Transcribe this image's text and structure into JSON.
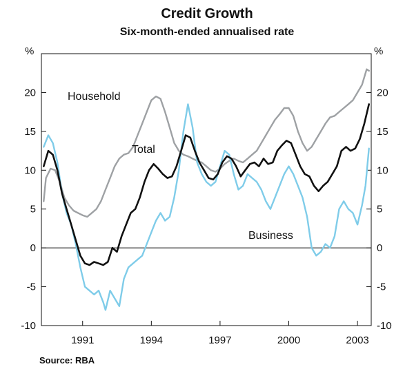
{
  "chart_data": {
    "type": "line",
    "title": "Credit Growth",
    "subtitle": "Six-month-ended annualised rate",
    "y_unit_left": "%",
    "y_unit_right": "%",
    "ylim": [
      -10,
      25
    ],
    "yticks": [
      -10,
      -5,
      0,
      5,
      10,
      15,
      20
    ],
    "xlim": [
      1989.2,
      2003.6
    ],
    "xticks": [
      1991,
      1994,
      1997,
      2000,
      2003
    ],
    "xtick_labels": [
      "1991",
      "1994",
      "1997",
      "2000",
      "2003"
    ],
    "source": "Source: RBA",
    "series": [
      {
        "name": "Household",
        "label": "Household",
        "color": "#9ea1a4",
        "points": [
          [
            1989.3,
            6
          ],
          [
            1989.4,
            9
          ],
          [
            1989.6,
            10.2
          ],
          [
            1989.8,
            10
          ],
          [
            1990.0,
            8.5
          ],
          [
            1990.2,
            6.5
          ],
          [
            1990.4,
            5.5
          ],
          [
            1990.6,
            4.8
          ],
          [
            1990.8,
            4.5
          ],
          [
            1991.0,
            4.2
          ],
          [
            1991.2,
            4
          ],
          [
            1991.4,
            4.5
          ],
          [
            1991.6,
            5
          ],
          [
            1991.8,
            6
          ],
          [
            1992.0,
            7.5
          ],
          [
            1992.2,
            9
          ],
          [
            1992.4,
            10.5
          ],
          [
            1992.6,
            11.5
          ],
          [
            1992.8,
            12
          ],
          [
            1993.0,
            12.2
          ],
          [
            1993.2,
            13
          ],
          [
            1993.4,
            14.5
          ],
          [
            1993.6,
            16
          ],
          [
            1993.8,
            17.5
          ],
          [
            1994.0,
            19
          ],
          [
            1994.2,
            19.5
          ],
          [
            1994.4,
            19.2
          ],
          [
            1994.6,
            17.5
          ],
          [
            1994.8,
            15.5
          ],
          [
            1995.0,
            13.5
          ],
          [
            1995.2,
            12.5
          ],
          [
            1995.4,
            12
          ],
          [
            1995.6,
            11.8
          ],
          [
            1995.8,
            11.5
          ],
          [
            1996.0,
            11.2
          ],
          [
            1996.2,
            11
          ],
          [
            1996.4,
            10.5
          ],
          [
            1996.6,
            10
          ],
          [
            1996.8,
            9.8
          ],
          [
            1997.0,
            10.2
          ],
          [
            1997.2,
            10.8
          ],
          [
            1997.4,
            11.2
          ],
          [
            1997.6,
            11.5
          ],
          [
            1997.8,
            11.2
          ],
          [
            1998.0,
            11
          ],
          [
            1998.2,
            11.5
          ],
          [
            1998.4,
            12
          ],
          [
            1998.6,
            12.5
          ],
          [
            1998.8,
            13.5
          ],
          [
            1999.0,
            14.5
          ],
          [
            1999.2,
            15.5
          ],
          [
            1999.4,
            16.5
          ],
          [
            1999.6,
            17.2
          ],
          [
            1999.8,
            18
          ],
          [
            2000.0,
            18
          ],
          [
            2000.2,
            17
          ],
          [
            2000.4,
            15
          ],
          [
            2000.6,
            13.5
          ],
          [
            2000.8,
            12.5
          ],
          [
            2001.0,
            13
          ],
          [
            2001.2,
            14
          ],
          [
            2001.4,
            15
          ],
          [
            2001.6,
            16
          ],
          [
            2001.8,
            16.8
          ],
          [
            2002.0,
            17
          ],
          [
            2002.2,
            17.5
          ],
          [
            2002.4,
            18
          ],
          [
            2002.6,
            18.5
          ],
          [
            2002.8,
            19
          ],
          [
            2003.0,
            20
          ],
          [
            2003.2,
            21
          ],
          [
            2003.4,
            23
          ],
          [
            2003.5,
            22.8
          ]
        ]
      },
      {
        "name": "Total",
        "label": "Total",
        "color": "#111111",
        "points": [
          [
            1989.3,
            10.5
          ],
          [
            1989.5,
            12.5
          ],
          [
            1989.7,
            12
          ],
          [
            1989.9,
            10
          ],
          [
            1990.1,
            7
          ],
          [
            1990.3,
            5
          ],
          [
            1990.5,
            3
          ],
          [
            1990.7,
            1
          ],
          [
            1990.9,
            -1
          ],
          [
            1991.1,
            -2
          ],
          [
            1991.3,
            -2.2
          ],
          [
            1991.5,
            -1.8
          ],
          [
            1991.7,
            -2
          ],
          [
            1991.9,
            -2.2
          ],
          [
            1992.1,
            -1.8
          ],
          [
            1992.3,
            0
          ],
          [
            1992.5,
            -0.5
          ],
          [
            1992.7,
            1.5
          ],
          [
            1992.9,
            3
          ],
          [
            1993.1,
            4.5
          ],
          [
            1993.3,
            5
          ],
          [
            1993.5,
            6.5
          ],
          [
            1993.7,
            8.5
          ],
          [
            1993.9,
            10
          ],
          [
            1994.1,
            10.8
          ],
          [
            1994.3,
            10.2
          ],
          [
            1994.5,
            9.5
          ],
          [
            1994.7,
            9
          ],
          [
            1994.9,
            9.2
          ],
          [
            1995.1,
            10.5
          ],
          [
            1995.3,
            12.5
          ],
          [
            1995.5,
            14.5
          ],
          [
            1995.7,
            14.2
          ],
          [
            1995.9,
            12.5
          ],
          [
            1996.1,
            11
          ],
          [
            1996.3,
            10
          ],
          [
            1996.5,
            9
          ],
          [
            1996.7,
            8.8
          ],
          [
            1996.9,
            9.5
          ],
          [
            1997.1,
            11
          ],
          [
            1997.3,
            11.8
          ],
          [
            1997.5,
            11.5
          ],
          [
            1997.7,
            10.5
          ],
          [
            1997.9,
            9.2
          ],
          [
            1998.1,
            10
          ],
          [
            1998.3,
            10.8
          ],
          [
            1998.5,
            11
          ],
          [
            1998.7,
            10.5
          ],
          [
            1998.9,
            11.5
          ],
          [
            1999.1,
            10.8
          ],
          [
            1999.3,
            11
          ],
          [
            1999.5,
            12.5
          ],
          [
            1999.7,
            13.2
          ],
          [
            1999.9,
            13.8
          ],
          [
            2000.1,
            13.5
          ],
          [
            2000.3,
            12
          ],
          [
            2000.5,
            10.5
          ],
          [
            2000.7,
            9.5
          ],
          [
            2000.9,
            9.2
          ],
          [
            2001.1,
            8
          ],
          [
            2001.3,
            7.3
          ],
          [
            2001.5,
            8
          ],
          [
            2001.7,
            8.5
          ],
          [
            2001.9,
            9.5
          ],
          [
            2002.1,
            10.5
          ],
          [
            2002.3,
            12.5
          ],
          [
            2002.5,
            13
          ],
          [
            2002.7,
            12.5
          ],
          [
            2002.9,
            12.8
          ],
          [
            2003.1,
            14
          ],
          [
            2003.3,
            16
          ],
          [
            2003.5,
            18.5
          ]
        ]
      },
      {
        "name": "Business",
        "label": "Business",
        "color": "#7fcce9",
        "points": [
          [
            1989.3,
            13
          ],
          [
            1989.5,
            14.5
          ],
          [
            1989.7,
            13.5
          ],
          [
            1989.9,
            11
          ],
          [
            1990.1,
            7
          ],
          [
            1990.3,
            4.5
          ],
          [
            1990.5,
            3
          ],
          [
            1990.7,
            0.5
          ],
          [
            1990.9,
            -2.5
          ],
          [
            1991.1,
            -5
          ],
          [
            1991.3,
            -5.5
          ],
          [
            1991.5,
            -6
          ],
          [
            1991.7,
            -5.5
          ],
          [
            1991.9,
            -7
          ],
          [
            1992.0,
            -8
          ],
          [
            1992.2,
            -5.5
          ],
          [
            1992.4,
            -6.5
          ],
          [
            1992.6,
            -7.5
          ],
          [
            1992.8,
            -4
          ],
          [
            1993.0,
            -2.5
          ],
          [
            1993.2,
            -2
          ],
          [
            1993.4,
            -1.5
          ],
          [
            1993.6,
            -1
          ],
          [
            1993.8,
            0.5
          ],
          [
            1994.0,
            2
          ],
          [
            1994.2,
            3.5
          ],
          [
            1994.4,
            4.5
          ],
          [
            1994.6,
            3.5
          ],
          [
            1994.8,
            4
          ],
          [
            1995.0,
            6.5
          ],
          [
            1995.2,
            10
          ],
          [
            1995.4,
            15
          ],
          [
            1995.6,
            18.5
          ],
          [
            1995.8,
            15.5
          ],
          [
            1996.0,
            11
          ],
          [
            1996.2,
            9.5
          ],
          [
            1996.4,
            8.5
          ],
          [
            1996.6,
            8
          ],
          [
            1996.8,
            8.5
          ],
          [
            1997.0,
            10.5
          ],
          [
            1997.2,
            12.5
          ],
          [
            1997.4,
            12
          ],
          [
            1997.6,
            9.5
          ],
          [
            1997.8,
            7.5
          ],
          [
            1998.0,
            8
          ],
          [
            1998.2,
            9.5
          ],
          [
            1998.4,
            9
          ],
          [
            1998.6,
            8.5
          ],
          [
            1998.8,
            7.5
          ],
          [
            1999.0,
            6
          ],
          [
            1999.2,
            5
          ],
          [
            1999.4,
            6.5
          ],
          [
            1999.6,
            8
          ],
          [
            1999.8,
            9.5
          ],
          [
            2000.0,
            10.5
          ],
          [
            2000.2,
            9.5
          ],
          [
            2000.4,
            8
          ],
          [
            2000.6,
            6.5
          ],
          [
            2000.8,
            4
          ],
          [
            2001.0,
            0
          ],
          [
            2001.2,
            -1
          ],
          [
            2001.4,
            -0.5
          ],
          [
            2001.6,
            0.5
          ],
          [
            2001.8,
            0
          ],
          [
            2002.0,
            1.5
          ],
          [
            2002.2,
            5
          ],
          [
            2002.4,
            6
          ],
          [
            2002.6,
            5
          ],
          [
            2002.8,
            4.5
          ],
          [
            2003.0,
            3
          ],
          [
            2003.2,
            5.5
          ],
          [
            2003.35,
            8
          ],
          [
            2003.5,
            12.8
          ]
        ]
      }
    ]
  }
}
